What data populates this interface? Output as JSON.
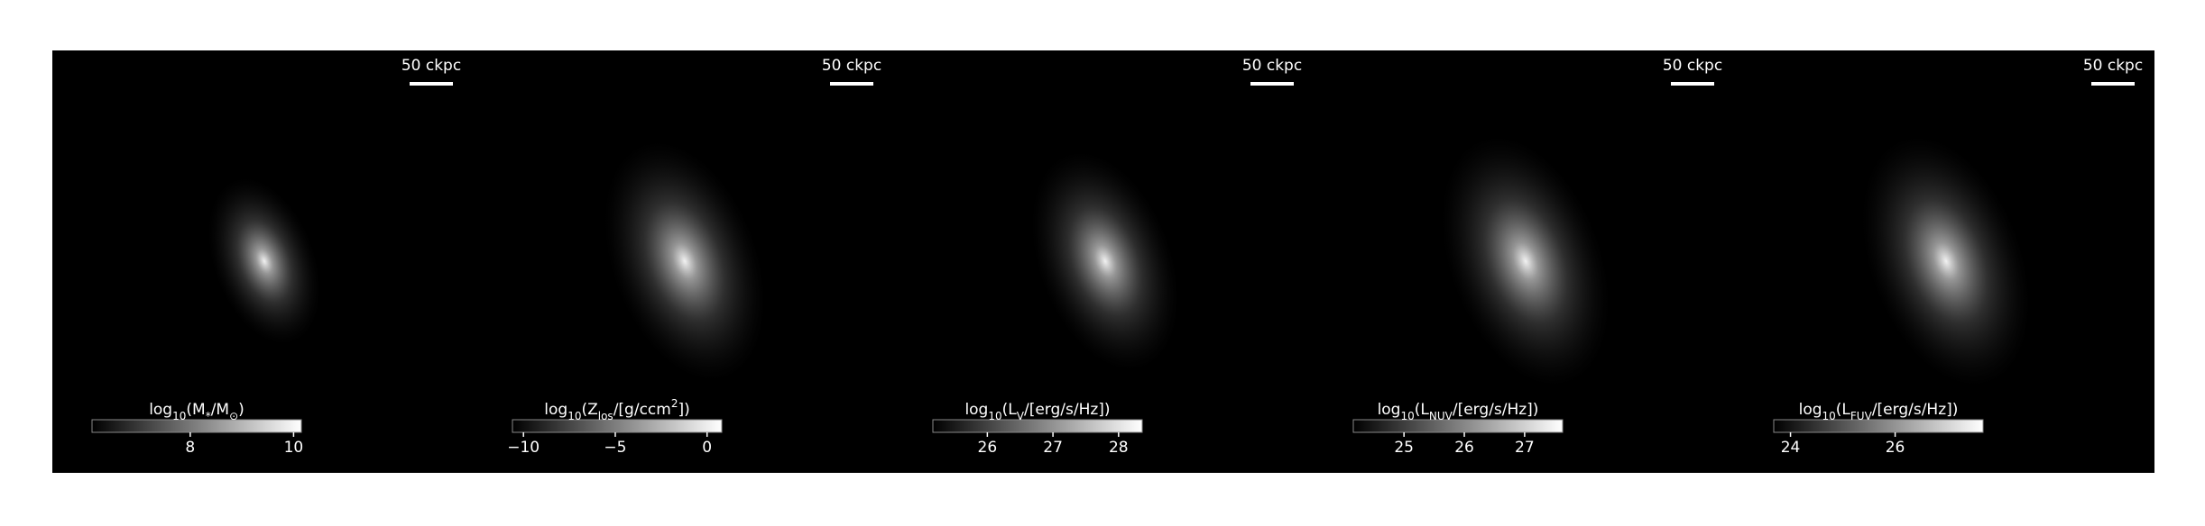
{
  "chart_data": [
    {
      "type": "image",
      "scale_label": "50 ckpc",
      "label_parts": [
        {
          "text": "log"
        },
        {
          "text": "10",
          "sub": true
        },
        {
          "text": "(M"
        },
        {
          "text": "*",
          "sub": true
        },
        {
          "text": "/M"
        },
        {
          "text": "⊙",
          "sub": true
        },
        {
          "text": ")"
        }
      ],
      "clim": [
        6.1,
        10.15
      ],
      "cticks": [
        8,
        10
      ]
    },
    {
      "type": "image",
      "scale_label": "50 ckpc",
      "label_parts": [
        {
          "text": "log"
        },
        {
          "text": "10",
          "sub": true
        },
        {
          "text": "(Z"
        },
        {
          "text": "los",
          "sub": true
        },
        {
          "text": "/[g/ccm"
        },
        {
          "text": "2",
          "sup": true
        },
        {
          "text": "])"
        }
      ],
      "clim": [
        -10.6,
        0.8
      ],
      "cticks": [
        {
          "value": -10,
          "label": "−10"
        },
        {
          "value": -5,
          "label": "−5"
        },
        0
      ]
    },
    {
      "type": "image",
      "scale_label": "50 ckpc",
      "label_parts": [
        {
          "text": "log"
        },
        {
          "text": "10",
          "sub": true
        },
        {
          "text": "(L"
        },
        {
          "text": "V",
          "sub": true
        },
        {
          "text": "/[erg/s/Hz])"
        }
      ],
      "clim": [
        25.17,
        28.36
      ],
      "cticks": [
        26,
        27,
        28
      ]
    },
    {
      "type": "image",
      "scale_label": "50 ckpc",
      "label_parts": [
        {
          "text": "log"
        },
        {
          "text": "10",
          "sub": true
        },
        {
          "text": "(L"
        },
        {
          "text": "NUV",
          "sub": true
        },
        {
          "text": "/[erg/s/Hz])"
        }
      ],
      "clim": [
        24.16,
        27.63
      ],
      "cticks": [
        25,
        26,
        27
      ]
    },
    {
      "type": "image",
      "scale_label": "50 ckpc",
      "label_parts": [
        {
          "text": "log"
        },
        {
          "text": "10",
          "sub": true
        },
        {
          "text": "(L"
        },
        {
          "text": "FUV",
          "sub": true
        },
        {
          "text": "/[erg/s/Hz])"
        }
      ],
      "clim": [
        23.68,
        27.68
      ],
      "cticks": [
        24,
        26
      ]
    }
  ]
}
